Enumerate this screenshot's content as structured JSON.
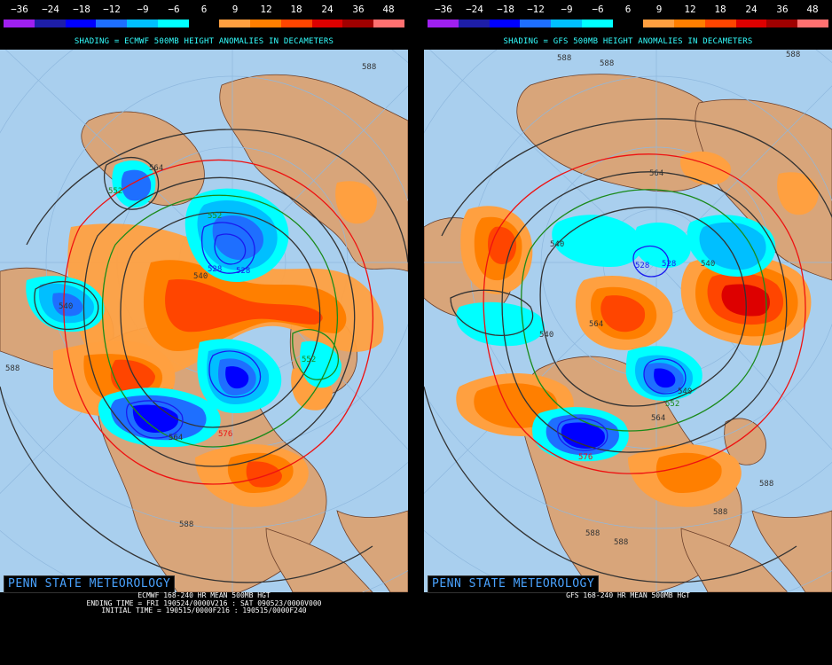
{
  "colorbar": {
    "ticks": [
      "−36",
      "−24",
      "−18",
      "−12",
      "−9",
      "−6",
      "6",
      "9",
      "12",
      "18",
      "24",
      "36",
      "48"
    ],
    "colors": [
      "#a020f0",
      "#1e1ea8",
      "#0000ff",
      "#1e6fff",
      "#00bfff",
      "#00ffff",
      "#000000",
      "#ffa040",
      "#ff7f00",
      "#ff4500",
      "#dd0000",
      "#a00000",
      "#ff7070"
    ]
  },
  "panels": [
    {
      "model": "ECMWF",
      "shading_title": "SHADING = ECMWF 500MB HEIGHT ANOMALIES IN DECAMETERS",
      "branding": "PENN STATE METEOROLOGY",
      "caption": [
        "ECMWF 168-240 HR MEAN 500MB HGT",
        "ENDING TIME = FRI 190524/0000V216 : SAT 090523/0000V000",
        "INITIAL TIME = 190515/0000F216 : 190515/0000F240"
      ],
      "contour_labels": [
        "588",
        "564",
        "552",
        "552",
        "528",
        "528",
        "540",
        "540",
        "552",
        "588",
        "564",
        "576",
        "588"
      ]
    },
    {
      "model": "GFS",
      "shading_title": "SHADING = GFS 500MB HEIGHT ANOMALIES IN DECAMETERS",
      "branding": "PENN STATE METEOROLOGY",
      "caption": [
        "GFS 168-240 HR MEAN 500MB HGT"
      ],
      "contour_labels": [
        "588",
        "588",
        "588",
        "564",
        "540",
        "528",
        "528",
        "540",
        "540",
        "564",
        "540",
        "552",
        "564",
        "576",
        "588",
        "588",
        "588",
        "588"
      ]
    }
  ]
}
